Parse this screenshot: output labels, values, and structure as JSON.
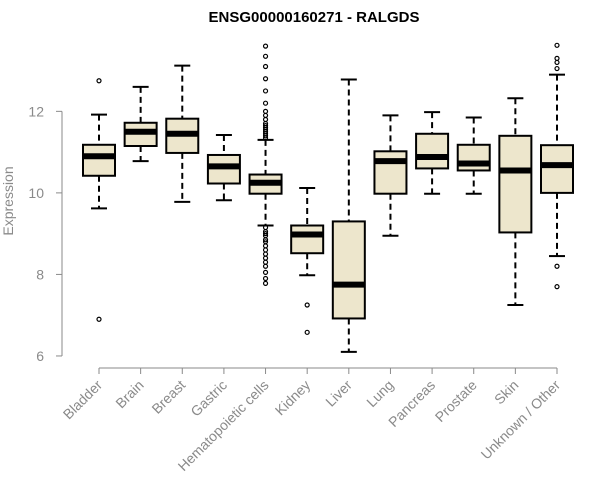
{
  "chart_data": {
    "type": "box",
    "title": "ENSG00000160271 - RALGDS",
    "xlabel": "",
    "ylabel": "Expression",
    "ylim": [
      5.95,
      13.75
    ],
    "yticks": [
      6,
      8,
      10,
      12
    ],
    "box_fill": "#ede6cc",
    "box_stroke": "#000000",
    "median_color": "#000000",
    "categories": [
      "Bladder",
      "Brain",
      "Breast",
      "Gastric",
      "Hematopoietic cells",
      "Kidney",
      "Liver",
      "Lung",
      "Pancreas",
      "Prostate",
      "Skin",
      "Unknown / Other"
    ],
    "boxes": [
      {
        "name": "Bladder",
        "whisker_low": 9.62,
        "q1": 10.42,
        "median": 10.9,
        "q3": 11.18,
        "whisker_high": 11.92,
        "outliers": [
          12.75,
          6.9
        ]
      },
      {
        "name": "Brain",
        "whisker_low": 10.78,
        "q1": 11.15,
        "median": 11.5,
        "q3": 11.72,
        "whisker_high": 12.6,
        "outliers": []
      },
      {
        "name": "Breast",
        "whisker_low": 9.78,
        "q1": 10.98,
        "median": 11.45,
        "q3": 11.82,
        "whisker_high": 13.12,
        "outliers": []
      },
      {
        "name": "Gastric",
        "whisker_low": 9.82,
        "q1": 10.23,
        "median": 10.65,
        "q3": 10.93,
        "whisker_high": 11.42,
        "outliers": []
      },
      {
        "name": "Hematopoietic cells",
        "whisker_low": 9.2,
        "q1": 9.98,
        "median": 10.25,
        "q3": 10.45,
        "whisker_high": 11.3,
        "outliers": [
          13.6,
          13.35,
          13.1,
          12.8,
          12.5,
          12.2,
          12.0,
          11.9,
          11.8,
          11.7,
          11.65,
          11.6,
          11.55,
          11.5,
          11.45,
          11.4,
          11.35,
          9.15,
          9.05,
          9.0,
          8.95,
          8.85,
          8.8,
          8.7,
          8.6,
          8.5,
          8.4,
          8.3,
          8.2,
          8.05,
          7.9,
          7.78
        ]
      },
      {
        "name": "Kidney",
        "whisker_low": 7.98,
        "q1": 8.52,
        "median": 8.98,
        "q3": 9.2,
        "whisker_high": 10.12,
        "outliers": [
          7.25,
          6.58
        ]
      },
      {
        "name": "Liver",
        "whisker_low": 6.1,
        "q1": 6.92,
        "median": 7.75,
        "q3": 9.3,
        "whisker_high": 12.78,
        "outliers": []
      },
      {
        "name": "Lung",
        "whisker_low": 8.95,
        "q1": 9.98,
        "median": 10.78,
        "q3": 11.02,
        "whisker_high": 11.9,
        "outliers": []
      },
      {
        "name": "Pancreas",
        "whisker_low": 9.98,
        "q1": 10.6,
        "median": 10.88,
        "q3": 11.45,
        "whisker_high": 11.98,
        "outliers": []
      },
      {
        "name": "Prostate",
        "whisker_low": 9.98,
        "q1": 10.55,
        "median": 10.72,
        "q3": 11.18,
        "whisker_high": 11.85,
        "outliers": []
      },
      {
        "name": "Skin",
        "whisker_low": 7.25,
        "q1": 9.03,
        "median": 10.55,
        "q3": 11.4,
        "whisker_high": 12.32,
        "outliers": []
      },
      {
        "name": "Unknown / Other",
        "whisker_low": 8.45,
        "q1": 10.0,
        "median": 10.68,
        "q3": 11.17,
        "whisker_high": 12.9,
        "outliers": [
          13.62,
          13.3,
          13.2,
          13.05,
          8.2,
          7.7
        ]
      }
    ]
  }
}
